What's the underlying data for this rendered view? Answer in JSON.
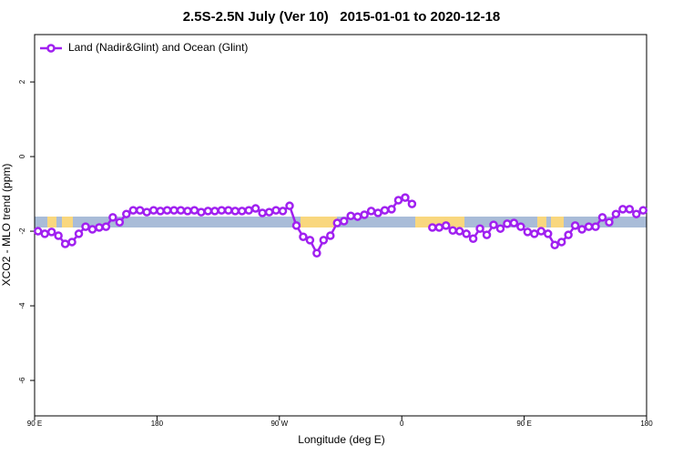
{
  "chart_data": {
    "type": "line",
    "title": "2.5S-2.5N July (Ver 10)   2015-01-01 to 2020-12-18",
    "xlabel": "Longitude (deg E)",
    "ylabel": "XCO2 - MLO trend (ppm)",
    "x": [
      92.5,
      97.5,
      102.5,
      107.5,
      112.5,
      117.5,
      122.5,
      127.5,
      132.5,
      137.5,
      142.5,
      147.5,
      152.5,
      157.5,
      162.5,
      167.5,
      172.5,
      177.5,
      182.5,
      187.5,
      192.5,
      197.5,
      202.5,
      207.5,
      212.5,
      217.5,
      222.5,
      227.5,
      232.5,
      237.5,
      242.5,
      247.5,
      252.5,
      257.5,
      262.5,
      267.5,
      272.5,
      277.5,
      282.5,
      287.5,
      292.5,
      297.5,
      302.5,
      307.5,
      312.5,
      317.5,
      322.5,
      327.5,
      332.5,
      337.5,
      342.5,
      347.5,
      352.5,
      357.5,
      362.5,
      367.5,
      372.5,
      377.5,
      382.5,
      387.5,
      392.5,
      397.5,
      402.5,
      407.5,
      412.5,
      417.5,
      422.5,
      427.5,
      432.5,
      437.5,
      442.5,
      447.5,
      452.5,
      457.5,
      462.5,
      467.5,
      472.5,
      477.5,
      482.5,
      487.5,
      492.5,
      497.5,
      502.5,
      507.5,
      512.5,
      517.5,
      522.5,
      527.5,
      532.5,
      537.5
    ],
    "series": [
      {
        "name": "Land (Nadir&Glint) and Ocean (Glint)",
        "color": "#a020f0",
        "values": [
          -2.0,
          -2.07,
          -2.02,
          -2.12,
          -2.34,
          -2.29,
          -2.07,
          -1.88,
          -1.95,
          -1.9,
          -1.88,
          -1.63,
          -1.76,
          -1.54,
          -1.44,
          -1.44,
          -1.49,
          -1.44,
          -1.46,
          -1.44,
          -1.44,
          -1.44,
          -1.46,
          -1.44,
          -1.49,
          -1.46,
          -1.46,
          -1.44,
          -1.44,
          -1.46,
          -1.46,
          -1.44,
          -1.39,
          -1.51,
          -1.49,
          -1.44,
          -1.46,
          -1.32,
          -1.85,
          -2.15,
          -2.24,
          -2.59,
          -2.24,
          -2.12,
          -1.78,
          -1.73,
          -1.59,
          -1.61,
          -1.56,
          -1.46,
          -1.51,
          -1.44,
          -1.41,
          -1.17,
          -1.1,
          -1.27,
          null,
          null,
          -1.9,
          -1.9,
          -1.85,
          -1.98,
          -2.0,
          -2.07,
          -2.2,
          -1.93,
          -2.1,
          -1.83,
          -1.93,
          -1.8,
          -1.78,
          -1.88,
          -2.02,
          -2.07,
          -2.0,
          -2.07,
          -2.37,
          -2.29,
          -2.1,
          -1.85,
          -1.95,
          -1.88,
          -1.88,
          -1.63,
          -1.76,
          -1.54,
          -1.41,
          -1.41,
          -1.54,
          -1.44
        ]
      }
    ],
    "xlim": [
      90,
      540
    ],
    "xticks": [
      {
        "value": 90,
        "label": "90 E"
      },
      180,
      {
        "value": 270,
        "label": "90 W"
      },
      {
        "value": 360,
        "label": "0"
      },
      {
        "value": 450,
        "label": "90 E"
      },
      {
        "value": 540,
        "label": "180"
      }
    ],
    "ylim": [
      -6.95,
      3.27
    ],
    "yticks": [
      -6,
      -4,
      -2,
      0,
      2
    ],
    "legend": "top-left"
  }
}
